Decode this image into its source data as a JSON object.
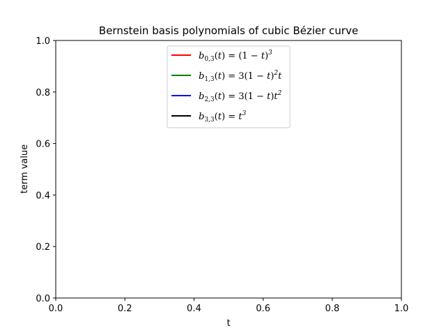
{
  "chart_data": {
    "type": "line",
    "title": "Bernstein basis polynomials of cubic Bézier curve",
    "xlabel": "t",
    "ylabel": "term value",
    "xlim": [
      0.0,
      1.0
    ],
    "ylim": [
      0.0,
      1.0
    ],
    "xticks": [
      "0.0",
      "0.2",
      "0.4",
      "0.6",
      "0.8",
      "1.0"
    ],
    "yticks": [
      "0.0",
      "0.2",
      "0.4",
      "0.6",
      "0.8",
      "1.0"
    ],
    "grid": false,
    "legend_position": "upper center",
    "series": [
      {
        "name": "b_{0,3}(t) = (1 − t)^3",
        "color": "#ff0000",
        "values": []
      },
      {
        "name": "b_{1,3}(t) = 3(1 − t)^2 t",
        "color": "#008000",
        "values": []
      },
      {
        "name": "b_{2,3}(t) = 3(1 − t)t^2",
        "color": "#0000ff",
        "values": []
      },
      {
        "name": "b_{3,3}(t) = t^3",
        "color": "#000000",
        "values": []
      }
    ]
  }
}
